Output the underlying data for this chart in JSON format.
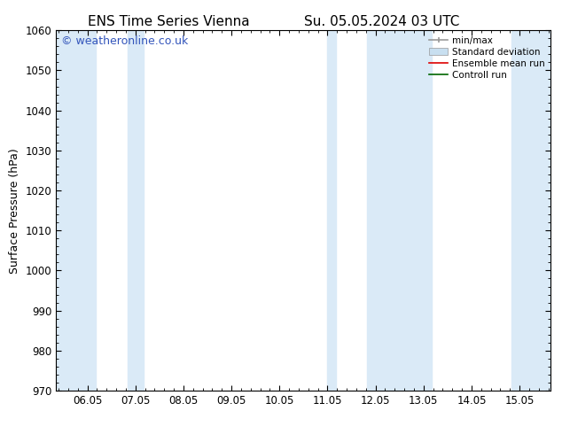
{
  "title_left": "ENS Time Series Vienna",
  "title_right": "Su. 05.05.2024 03 UTC",
  "ylabel": "Surface Pressure (hPa)",
  "ylim": [
    970,
    1060
  ],
  "yticks": [
    970,
    980,
    990,
    1000,
    1010,
    1020,
    1030,
    1040,
    1050,
    1060
  ],
  "xlim_start": 5.35,
  "xlim_end": 15.65,
  "xtick_labels": [
    "06.05",
    "07.05",
    "08.05",
    "09.05",
    "10.05",
    "11.05",
    "12.05",
    "13.05",
    "14.05",
    "15.05"
  ],
  "xtick_positions": [
    6.0,
    7.0,
    8.0,
    9.0,
    10.0,
    11.0,
    12.0,
    13.0,
    14.0,
    15.0
  ],
  "shaded_bands": [
    {
      "x_start": 5.35,
      "x_end": 6.17
    },
    {
      "x_start": 6.83,
      "x_end": 7.17
    },
    {
      "x_start": 11.0,
      "x_end": 11.17
    },
    {
      "x_start": 11.83,
      "x_end": 13.17
    },
    {
      "x_start": 14.83,
      "x_end": 15.65
    }
  ],
  "shade_color": "#daeaf7",
  "background_color": "#ffffff",
  "watermark_text": "© weatheronline.co.uk",
  "watermark_color": "#3355bb",
  "legend_items": [
    {
      "label": "min/max",
      "color": "#999999",
      "lw": 1.2,
      "ls": "-"
    },
    {
      "label": "Standard deviation",
      "color": "#c8dff0",
      "lw": 8,
      "ls": "-"
    },
    {
      "label": "Ensemble mean run",
      "color": "#dd0000",
      "lw": 1.2,
      "ls": "-"
    },
    {
      "label": "Controll run",
      "color": "#006600",
      "lw": 1.2,
      "ls": "-"
    }
  ],
  "title_fontsize": 11,
  "axis_label_fontsize": 9,
  "tick_fontsize": 8.5,
  "watermark_fontsize": 9
}
